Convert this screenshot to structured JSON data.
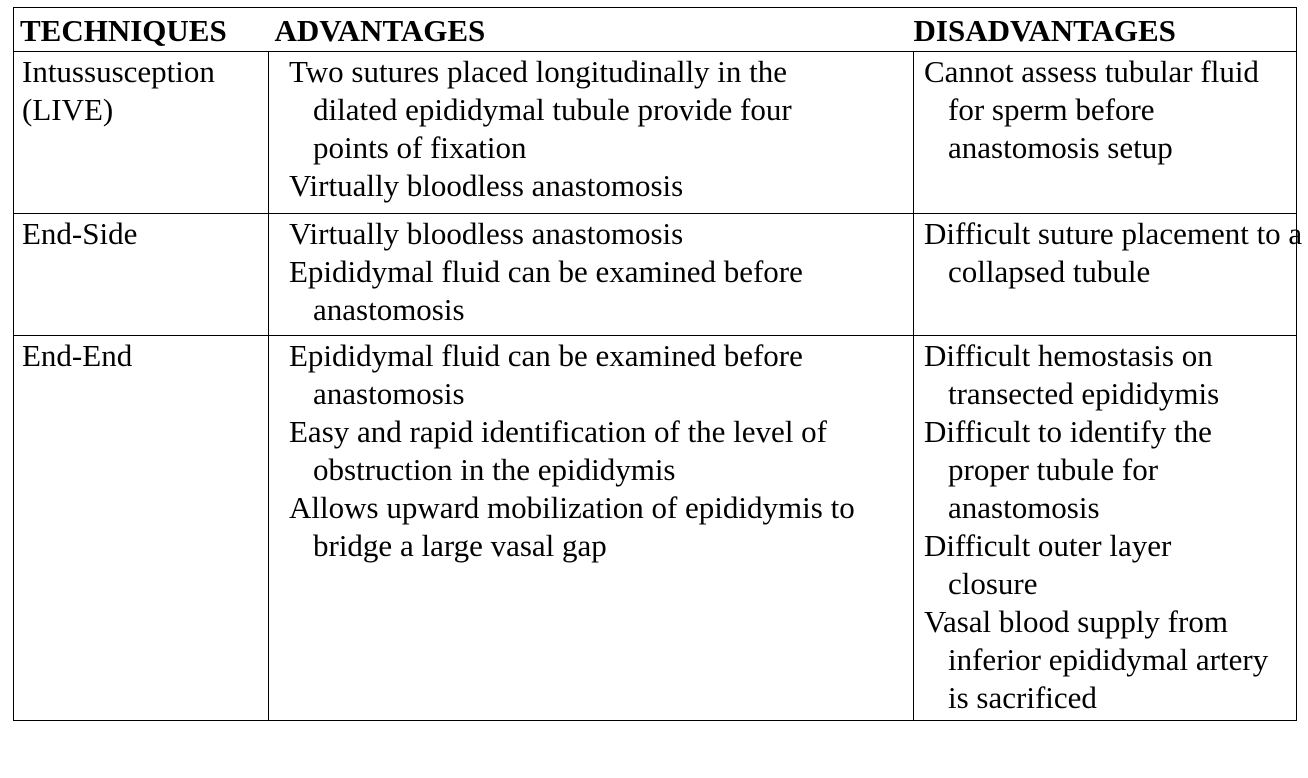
{
  "table": {
    "headers": [
      "TECHNIQUES",
      "ADVANTAGES",
      "DISADVANTAGES"
    ],
    "rows": [
      {
        "technique": [
          "Intussusception",
          "(LIVE)"
        ],
        "advantages": [
          "Two sutures placed longitudinally in the dilated epididymal tubule provide four points of fixation",
          "Virtually bloodless anastomosis"
        ],
        "disadvantages": [
          "Cannot assess tubular fluid for sperm before anastomosis setup"
        ]
      },
      {
        "technique": [
          "End-Side"
        ],
        "advantages": [
          "Virtually bloodless anastomosis",
          "Epididymal fluid can be examined before anastomosis"
        ],
        "disadvantages": [
          "Difficult suture placement to a collapsed tubule"
        ]
      },
      {
        "technique": [
          "End-End"
        ],
        "advantages": [
          "Epididymal fluid can be examined before anastomosis",
          "Easy and rapid identification of the level of obstruction in the epididymis",
          "Allows upward mobilization of epididymis to bridge a large vasal gap"
        ],
        "disadvantages": [
          "Difficult hemostasis on transected epididymis",
          "Difficult to identify the proper tubule for anastomosis",
          "Difficult outer layer closure",
          "Vasal blood supply from inferior epididymal artery is sacrificed"
        ]
      }
    ]
  }
}
